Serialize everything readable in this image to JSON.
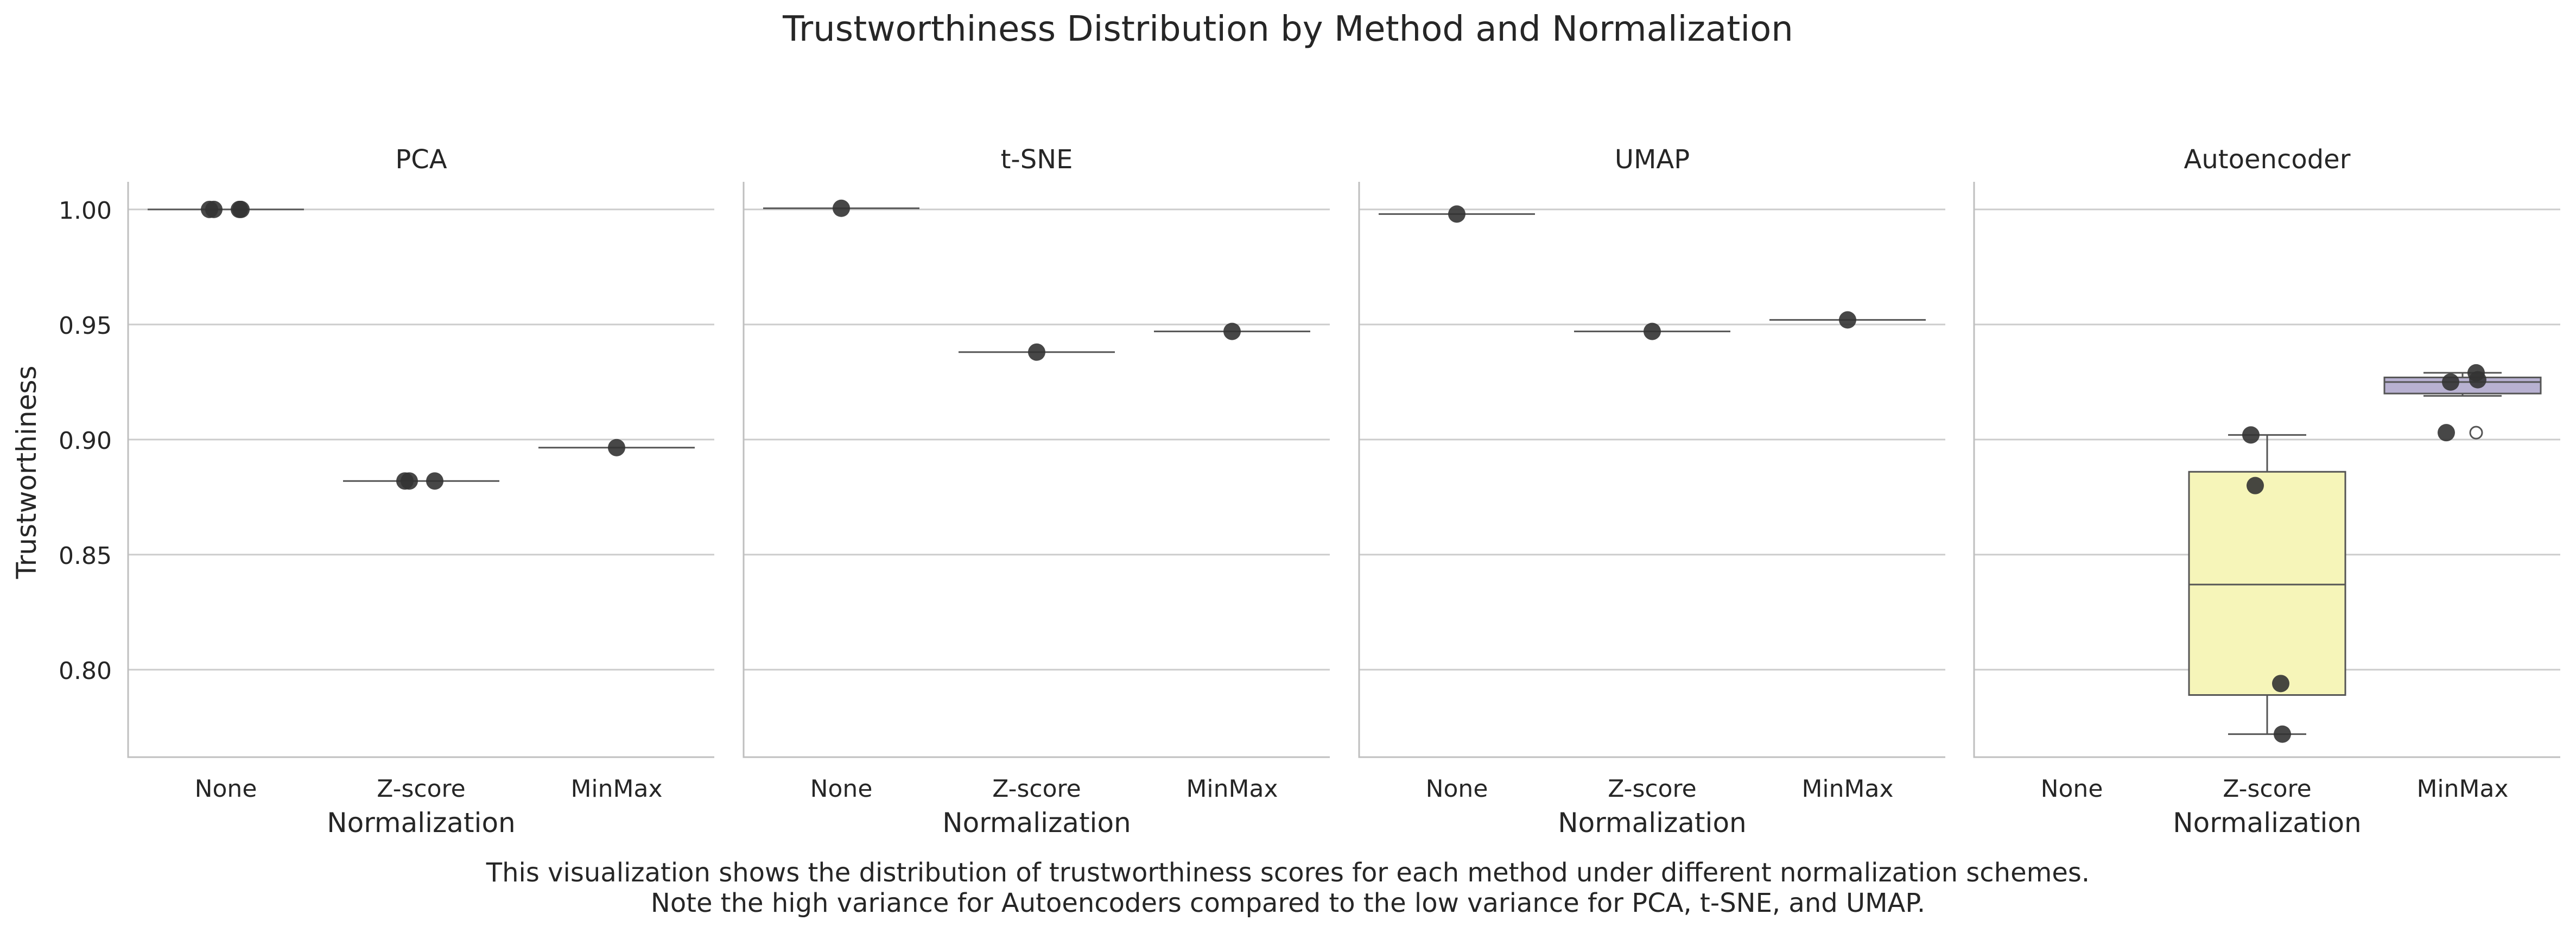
{
  "chart_data": {
    "type": "box",
    "title": "Trustworthiness Distribution by Method and Normalization",
    "ylabel": "Trustworthiness",
    "xlabel": "Normalization",
    "categories": [
      "None",
      "Z-score",
      "MinMax"
    ],
    "yticks": [
      0.8,
      0.85,
      0.9,
      0.95,
      1.0
    ],
    "ylim": [
      0.762,
      1.012
    ],
    "grid": "horizontal",
    "colors": {
      "text": "#262626",
      "grid": "#cccccc",
      "axis": "#bfbfbf",
      "box_edge": "#555555",
      "point": "#333333",
      "zscore_fill": "#f6f5b9",
      "minmax_fill": "#b8b1d1"
    },
    "panels": [
      {
        "name": "PCA",
        "groups": [
          {
            "category": "None",
            "values": [
              1.0,
              1.0,
              1.0,
              1.0
            ]
          },
          {
            "category": "Z-score",
            "values": [
              0.882,
              0.882,
              0.882
            ]
          },
          {
            "category": "MinMax",
            "values": [
              0.8965
            ]
          }
        ]
      },
      {
        "name": "t-SNE",
        "groups": [
          {
            "category": "None",
            "values": [
              1.0005
            ]
          },
          {
            "category": "Z-score",
            "values": [
              0.938
            ]
          },
          {
            "category": "MinMax",
            "values": [
              0.947
            ]
          }
        ]
      },
      {
        "name": "UMAP",
        "groups": [
          {
            "category": "None",
            "values": [
              0.998
            ]
          },
          {
            "category": "Z-score",
            "values": [
              0.947
            ]
          },
          {
            "category": "MinMax",
            "values": [
              0.952
            ]
          }
        ]
      },
      {
        "name": "Autoencoder",
        "groups": [
          {
            "category": "None",
            "values": []
          },
          {
            "category": "Z-score",
            "values": [
              0.902,
              0.88,
              0.794,
              0.772
            ],
            "box": {
              "whisker_low": 0.772,
              "q1": 0.789,
              "median": 0.837,
              "q3": 0.886,
              "whisker_high": 0.902
            },
            "fill": "zscore_fill"
          },
          {
            "category": "MinMax",
            "values": [
              0.903,
              0.925,
              0.929,
              0.926
            ],
            "box": {
              "whisker_low": 0.919,
              "q1": 0.92,
              "median": 0.925,
              "q3": 0.927,
              "whisker_high": 0.929
            },
            "outliers": [
              0.903
            ],
            "fill": "minmax_fill"
          }
        ]
      }
    ],
    "caption": [
      "This visualization shows the distribution of trustworthiness scores for each method under different normalization schemes.",
      "Note the high variance for Autoencoders compared to the low variance for PCA, t-SNE, and UMAP."
    ]
  }
}
